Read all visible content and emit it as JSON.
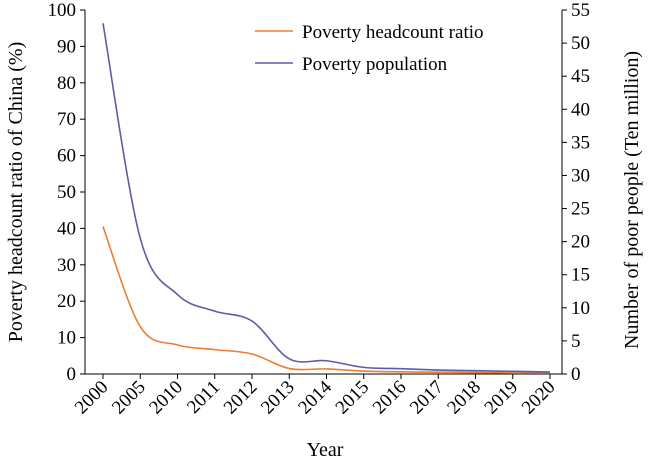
{
  "chart_data": {
    "type": "line",
    "title": "",
    "xlabel": "Year",
    "ylabel": "Poverty headcount ratio of China (%)",
    "ylabel_right": "Number of poor people (Ten million)",
    "categories": [
      "2000",
      "2005",
      "2010",
      "2011",
      "2012",
      "2013",
      "2014",
      "2015",
      "2016",
      "2017",
      "2018",
      "2019",
      "2020"
    ],
    "ylim": [
      0,
      100
    ],
    "yticks": [
      0,
      10,
      20,
      30,
      40,
      50,
      60,
      70,
      80,
      90,
      100
    ],
    "ylim_right": [
      0,
      55
    ],
    "yticks_right": [
      0,
      5,
      10,
      15,
      20,
      25,
      30,
      35,
      40,
      45,
      50,
      55
    ],
    "legend_position": "top-right",
    "grid": false,
    "series": [
      {
        "name": "Poverty headcount ratio",
        "axis": "left",
        "color": "#ed7d31",
        "values": [
          40.5,
          13.0,
          8.0,
          6.7,
          5.5,
          1.5,
          1.4,
          0.8,
          0.6,
          0.5,
          0.4,
          0.3,
          0.3
        ]
      },
      {
        "name": "Poverty population",
        "axis": "right",
        "color": "#5b5ea6",
        "values": [
          53.0,
          20.5,
          12.0,
          9.5,
          8.0,
          2.3,
          2.0,
          1.0,
          0.8,
          0.6,
          0.5,
          0.4,
          0.3
        ]
      }
    ]
  }
}
